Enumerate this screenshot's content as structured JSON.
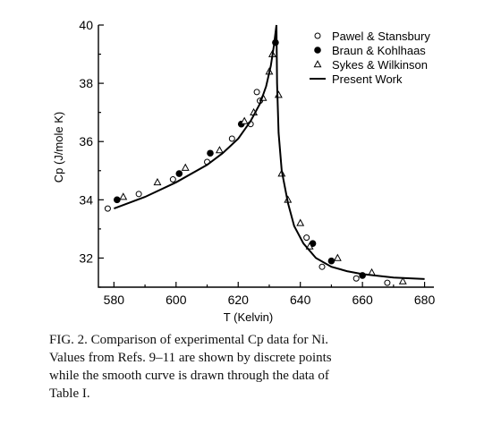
{
  "chart_data": {
    "type": "scatter",
    "title": "",
    "xlabel": "T (Kelvin)",
    "ylabel": "Cp (J/mole K)",
    "xlim": [
      575,
      683
    ],
    "ylim": [
      31.0,
      40.0
    ],
    "x_ticks": [
      580,
      600,
      620,
      640,
      660,
      680
    ],
    "y_ticks": [
      32,
      34,
      36,
      38,
      40
    ],
    "legend_position": "top-right",
    "series": [
      {
        "name": "Pawel & Stansbury",
        "marker": "open-circle",
        "points": [
          [
            578,
            33.7
          ],
          [
            588,
            34.2
          ],
          [
            599,
            34.7
          ],
          [
            610,
            35.3
          ],
          [
            618,
            36.1
          ],
          [
            624,
            36.6
          ],
          [
            626,
            37.7
          ],
          [
            627,
            37.4
          ],
          [
            642,
            32.7
          ],
          [
            647,
            31.7
          ],
          [
            658,
            31.3
          ],
          [
            668,
            31.15
          ]
        ]
      },
      {
        "name": "Braun & Kohlhaas",
        "marker": "filled-circle",
        "points": [
          [
            581,
            34.0
          ],
          [
            601,
            34.9
          ],
          [
            611,
            35.6
          ],
          [
            621,
            36.6
          ],
          [
            632,
            39.4
          ],
          [
            644,
            32.5
          ],
          [
            650,
            31.9
          ],
          [
            660,
            31.4
          ]
        ]
      },
      {
        "name": "Sykes & Wilkinson",
        "marker": "open-triangle",
        "points": [
          [
            583,
            34.1
          ],
          [
            594,
            34.6
          ],
          [
            603,
            35.1
          ],
          [
            614,
            35.7
          ],
          [
            622,
            36.7
          ],
          [
            625,
            37.0
          ],
          [
            628,
            37.5
          ],
          [
            630,
            38.4
          ],
          [
            631,
            39.0
          ],
          [
            633,
            37.6
          ],
          [
            634,
            34.9
          ],
          [
            636,
            34.0
          ],
          [
            640,
            33.2
          ],
          [
            643,
            32.4
          ],
          [
            652,
            32.0
          ],
          [
            663,
            31.5
          ],
          [
            673,
            31.2
          ]
        ]
      },
      {
        "name": "Present Work",
        "marker": "line",
        "points": [
          [
            580,
            33.7
          ],
          [
            590,
            34.1
          ],
          [
            600,
            34.6
          ],
          [
            610,
            35.2
          ],
          [
            615,
            35.6
          ],
          [
            620,
            36.1
          ],
          [
            624,
            36.7
          ],
          [
            627,
            37.3
          ],
          [
            629,
            37.9
          ],
          [
            630.5,
            38.6
          ],
          [
            631.5,
            39.3
          ],
          [
            632.3,
            40.0
          ],
          [
            632.5,
            38.0
          ],
          [
            633,
            36.3
          ],
          [
            634,
            35.0
          ],
          [
            636,
            33.9
          ],
          [
            638,
            33.1
          ],
          [
            641,
            32.5
          ],
          [
            645,
            32.0
          ],
          [
            650,
            31.7
          ],
          [
            655,
            31.55
          ],
          [
            660,
            31.45
          ],
          [
            670,
            31.33
          ],
          [
            680,
            31.28
          ]
        ]
      }
    ]
  },
  "caption": {
    "text": "FIG. 2.  Comparison of experimental Cp data for Ni.\nValues from Refs. 9–11 are shown by discrete points\nwhile the smooth curve is drawn through the data of\nTable I."
  }
}
